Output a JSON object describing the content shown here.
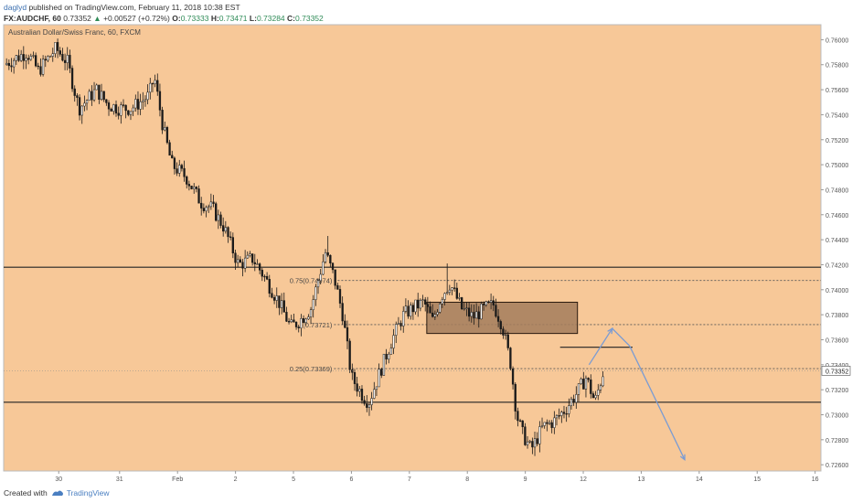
{
  "header": {
    "user": "daglyd",
    "published_text": "published on TradingView.com, February 11, 2018 10:38 EST",
    "symbol_line_prefix": "FX:AUDCHF, 60",
    "last": "0.73352",
    "arrow": "▲",
    "change": "+0.00527 (+0.72%)",
    "o_label": "O:",
    "o_value": "0.73333",
    "h_label": "H:",
    "h_value": "0.73471",
    "l_label": "L:",
    "l_value": "0.73284",
    "c_label": "C:",
    "c_value": "0.73352"
  },
  "footer": {
    "created_with": "Created with",
    "brand": "TradingView"
  },
  "colors": {
    "background": "#f7c898",
    "candle": "#1a1a1a",
    "zone": "#a37c5c",
    "projection": "#7b9cd3"
  },
  "chart_data": {
    "type": "candlestick",
    "title": "Australian Dollar/Swiss Franc, 60, FXCM",
    "ylim": [
      0.7255,
      0.7612
    ],
    "y_ticks": [
      0.726,
      0.728,
      0.73,
      0.732,
      0.734,
      0.736,
      0.738,
      0.74,
      0.742,
      0.744,
      0.746,
      0.748,
      0.75,
      0.752,
      0.754,
      0.756,
      0.758,
      0.76
    ],
    "y_tick_labels": [
      "0.72600",
      "0.72800",
      "0.73000",
      "0.73200",
      "0.73400",
      "0.73600",
      "0.73800",
      "0.74000",
      "0.74200",
      "0.74400",
      "0.74600",
      "0.74800",
      "0.75000",
      "0.75200",
      "0.75400",
      "0.75600",
      "0.75800",
      "0.76000"
    ],
    "x_ticks": [
      {
        "label": "30",
        "pos": 0.95
      },
      {
        "label": "31",
        "pos": 2.0
      },
      {
        "label": "Feb",
        "pos": 3.0
      },
      {
        "label": "2",
        "pos": 4.0
      },
      {
        "label": "5",
        "pos": 5.0
      },
      {
        "label": "6",
        "pos": 6.0
      },
      {
        "label": "7",
        "pos": 7.0
      },
      {
        "label": "8",
        "pos": 8.0
      },
      {
        "label": "9",
        "pos": 9.0
      },
      {
        "label": "12",
        "pos": 10.0
      },
      {
        "label": "13",
        "pos": 11.0
      },
      {
        "label": "14",
        "pos": 12.0
      },
      {
        "label": "15",
        "pos": 13.0
      },
      {
        "label": "16",
        "pos": 14.0
      }
    ],
    "xlim": [
      0,
      14.1
    ],
    "price_path": [
      [
        0.0,
        0.758
      ],
      [
        0.4,
        0.759
      ],
      [
        0.6,
        0.7575
      ],
      [
        0.9,
        0.7593
      ],
      [
        1.1,
        0.7582
      ],
      [
        1.3,
        0.7545
      ],
      [
        1.6,
        0.756
      ],
      [
        1.8,
        0.7548
      ],
      [
        2.0,
        0.7545
      ],
      [
        2.2,
        0.7545
      ],
      [
        2.5,
        0.7555
      ],
      [
        2.6,
        0.757
      ],
      [
        2.75,
        0.753
      ],
      [
        2.9,
        0.75
      ],
      [
        3.15,
        0.749
      ],
      [
        3.4,
        0.747
      ],
      [
        3.6,
        0.7465
      ],
      [
        3.8,
        0.745
      ],
      [
        4.05,
        0.742
      ],
      [
        4.3,
        0.7425
      ],
      [
        4.5,
        0.741
      ],
      [
        4.75,
        0.739
      ],
      [
        4.95,
        0.737
      ],
      [
        5.1,
        0.7375
      ],
      [
        5.3,
        0.7385
      ],
      [
        5.55,
        0.743
      ],
      [
        5.7,
        0.741
      ],
      [
        5.85,
        0.738
      ],
      [
        6.0,
        0.733
      ],
      [
        6.2,
        0.7315
      ],
      [
        6.3,
        0.731
      ],
      [
        6.5,
        0.7335
      ],
      [
        6.7,
        0.736
      ],
      [
        6.9,
        0.738
      ],
      [
        7.05,
        0.7385
      ],
      [
        7.25,
        0.739
      ],
      [
        7.4,
        0.7375
      ],
      [
        7.55,
        0.7395
      ],
      [
        7.7,
        0.7405
      ],
      [
        7.9,
        0.7385
      ],
      [
        8.1,
        0.7378
      ],
      [
        8.3,
        0.7385
      ],
      [
        8.45,
        0.7388
      ],
      [
        8.6,
        0.7372
      ],
      [
        8.75,
        0.734
      ],
      [
        8.85,
        0.73
      ],
      [
        8.95,
        0.7285
      ],
      [
        9.1,
        0.7272
      ],
      [
        9.3,
        0.729
      ],
      [
        9.5,
        0.7295
      ],
      [
        9.7,
        0.7305
      ],
      [
        9.9,
        0.7318
      ],
      [
        10.05,
        0.733
      ],
      [
        10.2,
        0.731
      ],
      [
        10.35,
        0.7335
      ]
    ],
    "wick_extremes": [
      {
        "x": 5.6,
        "high": 0.7443
      },
      {
        "x": 7.65,
        "high": 0.7421
      },
      {
        "x": 9.15,
        "low": 0.7267
      },
      {
        "x": 0.9,
        "high": 0.7595
      },
      {
        "x": 6.25,
        "low": 0.7302
      }
    ],
    "horizontal_lines": [
      0.7418,
      0.731
    ],
    "fib_levels": [
      {
        "label": "0.75(0.74074)",
        "value": 0.74074
      },
      {
        "label": "(0.73721)",
        "value": 0.73721
      },
      {
        "label": "0.25(0.73369)",
        "value": 0.73369
      }
    ],
    "zone": {
      "x_start": 7.3,
      "x_end": 9.9,
      "y_low": 0.7365,
      "y_high": 0.739
    },
    "resistance_segment": {
      "x_start": 9.6,
      "x_end": 10.85,
      "value": 0.7354
    },
    "projection": [
      [
        10.1,
        0.734
      ],
      [
        10.5,
        0.7369
      ],
      [
        10.8,
        0.7355
      ],
      [
        11.75,
        0.7264
      ]
    ],
    "last_price": 0.73352,
    "last_price_label": "0.73352"
  }
}
